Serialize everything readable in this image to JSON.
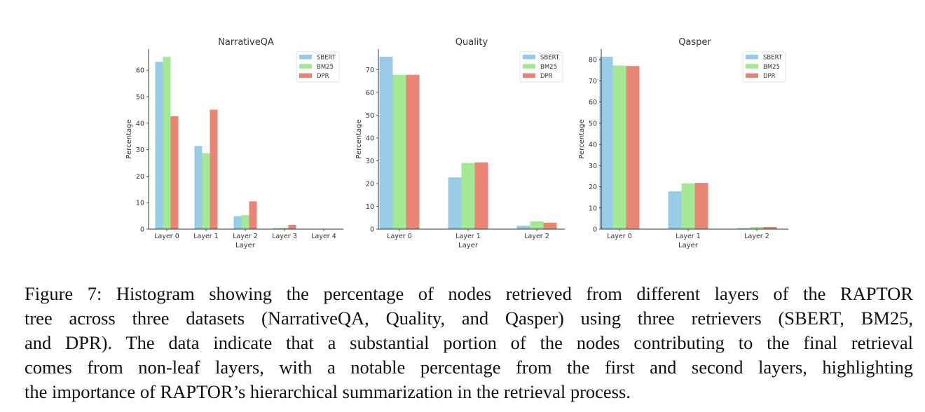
{
  "chart_data": [
    {
      "type": "bar",
      "title": "NarrativeQA",
      "xlabel": "Layer",
      "ylabel": "Percentage",
      "categories": [
        "Layer 0",
        "Layer 1",
        "Layer 2",
        "Layer 3",
        "Layer 4"
      ],
      "ylim": [
        0,
        68
      ],
      "yticks": [
        0,
        10,
        20,
        30,
        40,
        50,
        60
      ],
      "legend": "top-right",
      "series": [
        {
          "name": "SBERT",
          "color": "#98cbe8",
          "values": [
            63.2,
            31.4,
            4.9,
            0.4,
            0
          ]
        },
        {
          "name": "BM25",
          "color": "#a3e893",
          "values": [
            65.0,
            28.7,
            5.3,
            0.6,
            0
          ]
        },
        {
          "name": "DPR",
          "color": "#e98574",
          "values": [
            42.6,
            45.1,
            10.5,
            1.6,
            0
          ]
        }
      ]
    },
    {
      "type": "bar",
      "title": "Quality",
      "xlabel": "Layer",
      "ylabel": "Percentage",
      "categories": [
        "Layer 0",
        "Layer 1",
        "Layer 2"
      ],
      "ylim": [
        0,
        79
      ],
      "yticks": [
        0,
        10,
        20,
        30,
        40,
        50,
        60,
        70
      ],
      "legend": "top-right",
      "series": [
        {
          "name": "SBERT",
          "color": "#98cbe8",
          "values": [
            75.6,
            22.7,
            1.5
          ]
        },
        {
          "name": "BM25",
          "color": "#a3e893",
          "values": [
            67.7,
            29.0,
            3.4
          ]
        },
        {
          "name": "DPR",
          "color": "#e98574",
          "values": [
            67.7,
            29.3,
            2.8
          ]
        }
      ]
    },
    {
      "type": "bar",
      "title": "Qasper",
      "xlabel": "Layer",
      "ylabel": "Percentage",
      "categories": [
        "Layer 0",
        "Layer 1",
        "Layer 2"
      ],
      "ylim": [
        0,
        85
      ],
      "yticks": [
        0,
        10,
        20,
        30,
        40,
        50,
        60,
        70,
        80
      ],
      "legend": "top-right",
      "series": [
        {
          "name": "SBERT",
          "color": "#98cbe8",
          "values": [
            81.4,
            17.8,
            0.5
          ]
        },
        {
          "name": "BM25",
          "color": "#a3e893",
          "values": [
            77.2,
            21.6,
            1.0
          ]
        },
        {
          "name": "DPR",
          "color": "#e98574",
          "values": [
            77.0,
            21.8,
            1.0
          ]
        }
      ]
    }
  ],
  "caption": {
    "lines": [
      "Figure 7: Histogram showing the percentage of nodes retrieved from different layers of the RAPTOR",
      "tree across three datasets (NarrativeQA, Quality, and Qasper) using three retrievers (SBERT, BM25,",
      "and DPR). The data indicate that a substantial portion of the nodes contributing to the final retrieval",
      "comes from non-leaf layers, with a notable percentage from the first and second layers, highlighting",
      "the importance of RAPTOR’s hierarchical summarization in the retrieval process."
    ]
  }
}
